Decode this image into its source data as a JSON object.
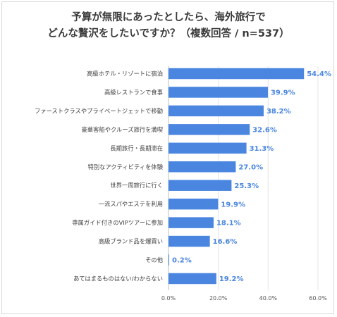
{
  "chart_data": {
    "type": "bar",
    "orientation": "horizontal",
    "title_lines": [
      "予算が無限にあったとしたら、海外旅行で",
      "どんな贅沢をしたいですか？（複数回答 / n=537）"
    ],
    "categories": [
      "高級ホテル・リゾートに宿泊",
      "高級レストランで食事",
      "ファーストクラスやプライベートジェットで移動",
      "豪華客船やクルーズ旅行を満喫",
      "長期旅行・長期滞在",
      "特別なアクティビティを体験",
      "世界一周旅行に行く",
      "一流スパやエステを利用",
      "専属ガイド付きのVIPツアーに参加",
      "高級ブランド品を爆買い",
      "その他",
      "あてはまるものはない/わからない"
    ],
    "values": [
      54.4,
      39.9,
      38.2,
      32.6,
      31.3,
      27.0,
      25.3,
      19.9,
      18.1,
      16.6,
      0.2,
      19.2
    ],
    "value_labels": [
      "54.4%",
      "39.9%",
      "38.2%",
      "32.6%",
      "31.3%",
      "27.0%",
      "25.3%",
      "19.9%",
      "18.1%",
      "16.6%",
      "0.2%",
      "19.2%"
    ],
    "xlim": [
      0,
      60
    ],
    "xticks": [
      0,
      20,
      40,
      60
    ],
    "xtick_labels": [
      "0.0%",
      "20.0%",
      "40.0%",
      "60.0%"
    ],
    "grid": true,
    "legend": "none",
    "bar_color": "#4a86e0",
    "label_color": "#4a86e0"
  }
}
